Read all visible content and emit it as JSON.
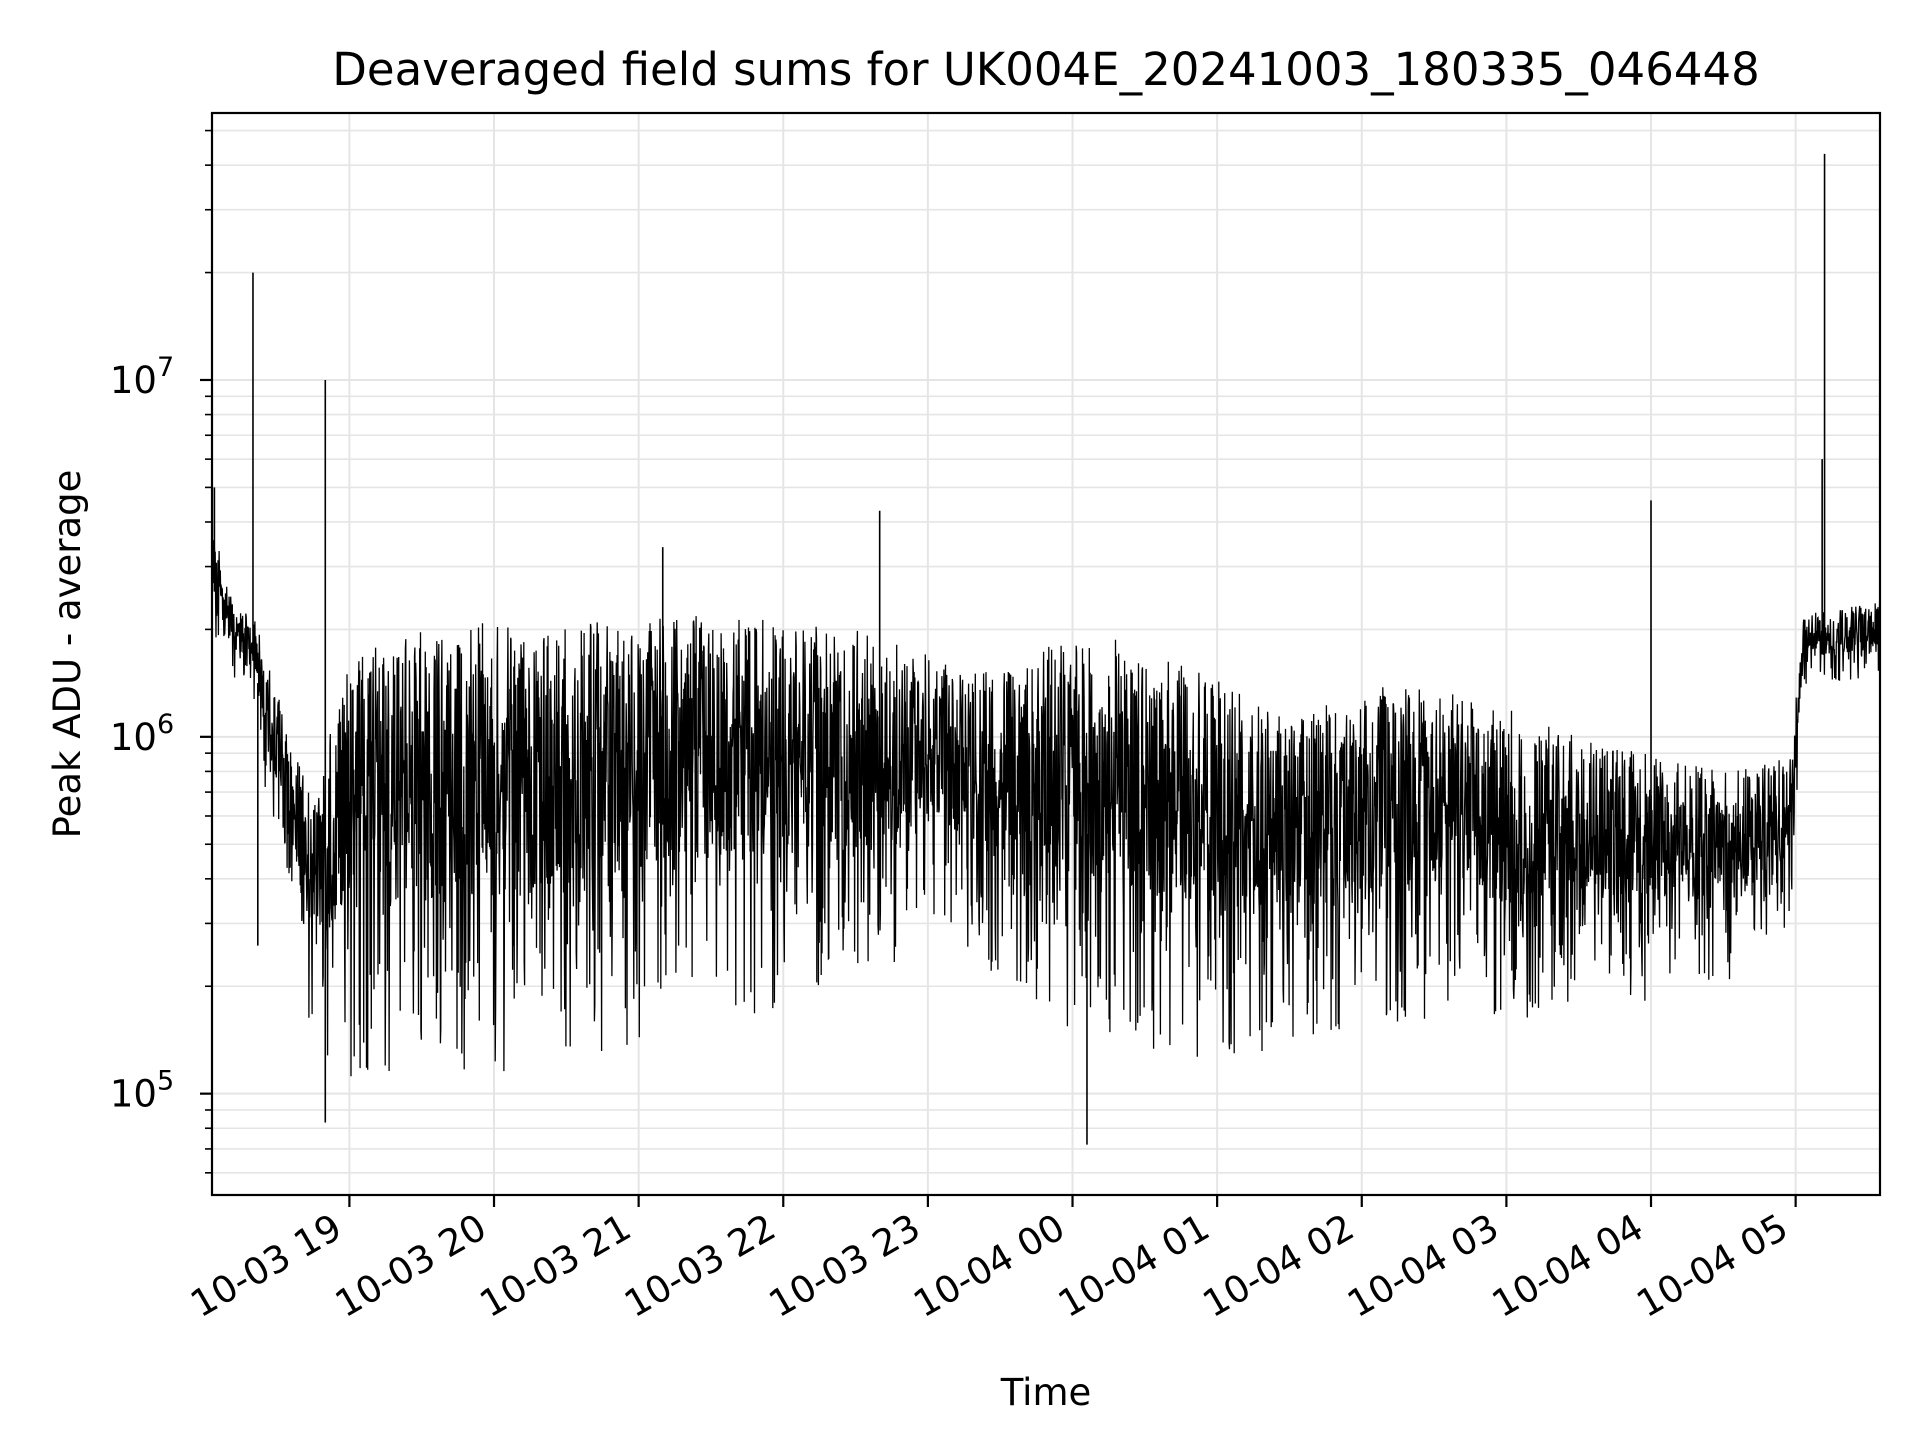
{
  "chart_data": {
    "type": "line",
    "title": "Deaveraged field sums for UK004E_20241003_180335_046448",
    "xlabel": "Time",
    "ylabel": "Peak ADU - average",
    "y_scale": "log",
    "ylim": [
      52000,
      56000000
    ],
    "xlim": [
      "2024-10-03 18:03",
      "2024-10-04 05:35"
    ],
    "grid": true,
    "line_color": "#000000",
    "grid_color": "#e5e5e5",
    "x_ticks": [
      {
        "t": "2024-10-03 19:00",
        "label": "10-03 19"
      },
      {
        "t": "2024-10-03 20:00",
        "label": "10-03 20"
      },
      {
        "t": "2024-10-03 21:00",
        "label": "10-03 21"
      },
      {
        "t": "2024-10-03 22:00",
        "label": "10-03 22"
      },
      {
        "t": "2024-10-03 23:00",
        "label": "10-03 23"
      },
      {
        "t": "2024-10-04 00:00",
        "label": "10-04 00"
      },
      {
        "t": "2024-10-04 01:00",
        "label": "10-04 01"
      },
      {
        "t": "2024-10-04 02:00",
        "label": "10-04 02"
      },
      {
        "t": "2024-10-04 03:00",
        "label": "10-04 03"
      },
      {
        "t": "2024-10-04 04:00",
        "label": "10-04 04"
      },
      {
        "t": "2024-10-04 05:00",
        "label": "10-04 05"
      }
    ],
    "y_ticks": [
      {
        "value": 100000,
        "base": "10",
        "exp": "5"
      },
      {
        "value": 1000000,
        "base": "10",
        "exp": "6"
      },
      {
        "value": 10000000,
        "base": "10",
        "exp": "7"
      }
    ],
    "series": [
      {
        "envelope": [
          {
            "t": "2024-10-03 18:03",
            "low": 1700000,
            "high": 4200000
          },
          {
            "t": "2024-10-03 18:10",
            "low": 1500000,
            "high": 2500000
          },
          {
            "t": "2024-10-03 18:20",
            "low": 1300000,
            "high": 2200000
          },
          {
            "t": "2024-10-03 18:25",
            "low": 650000,
            "high": 1800000
          },
          {
            "t": "2024-10-03 18:35",
            "low": 400000,
            "high": 1000000
          },
          {
            "t": "2024-10-03 18:45",
            "low": 130000,
            "high": 700000
          },
          {
            "t": "2024-10-03 19:00",
            "low": 110000,
            "high": 1800000
          },
          {
            "t": "2024-10-03 19:30",
            "low": 100000,
            "high": 2000000
          },
          {
            "t": "2024-10-03 20:00",
            "low": 110000,
            "high": 2100000
          },
          {
            "t": "2024-10-03 20:30",
            "low": 120000,
            "high": 2100000
          },
          {
            "t": "2024-10-03 21:00",
            "low": 140000,
            "high": 2200000
          },
          {
            "t": "2024-10-03 21:30",
            "low": 160000,
            "high": 2200000
          },
          {
            "t": "2024-10-03 22:00",
            "low": 160000,
            "high": 2100000
          },
          {
            "t": "2024-10-03 22:30",
            "low": 170000,
            "high": 2000000
          },
          {
            "t": "2024-10-03 23:00",
            "low": 300000,
            "high": 1700000
          },
          {
            "t": "2024-10-03 23:30",
            "low": 200000,
            "high": 1500000
          },
          {
            "t": "2024-10-04 00:00",
            "low": 150000,
            "high": 2000000
          },
          {
            "t": "2024-10-04 00:30",
            "low": 130000,
            "high": 1800000
          },
          {
            "t": "2024-10-04 01:00",
            "low": 110000,
            "high": 1500000
          },
          {
            "t": "2024-10-04 01:30",
            "low": 140000,
            "high": 1100000
          },
          {
            "t": "2024-10-04 02:00",
            "low": 150000,
            "high": 1400000
          },
          {
            "t": "2024-10-04 02:30",
            "low": 150000,
            "high": 1400000
          },
          {
            "t": "2024-10-04 03:00",
            "low": 150000,
            "high": 1200000
          },
          {
            "t": "2024-10-04 03:30",
            "low": 170000,
            "high": 1000000
          },
          {
            "t": "2024-10-04 04:00",
            "low": 180000,
            "high": 900000
          },
          {
            "t": "2024-10-04 04:30",
            "low": 200000,
            "high": 800000
          },
          {
            "t": "2024-10-04 04:58",
            "low": 300000,
            "high": 900000
          },
          {
            "t": "2024-10-04 05:03",
            "low": 1300000,
            "high": 2200000
          },
          {
            "t": "2024-10-04 05:35",
            "low": 1500000,
            "high": 2400000
          }
        ],
        "spikes": [
          {
            "t": "2024-10-03 18:04",
            "value": 5000000
          },
          {
            "t": "2024-10-03 18:20",
            "value": 20000000
          },
          {
            "t": "2024-10-03 18:22",
            "value": 260000
          },
          {
            "t": "2024-10-03 18:50",
            "value": 10000000
          },
          {
            "t": "2024-10-03 18:50",
            "value": 83000
          },
          {
            "t": "2024-10-03 21:10",
            "value": 3400000
          },
          {
            "t": "2024-10-03 22:40",
            "value": 4300000
          },
          {
            "t": "2024-10-04 00:06",
            "value": 72000
          },
          {
            "t": "2024-10-04 04:00",
            "value": 4600000
          },
          {
            "t": "2024-10-04 05:11",
            "value": 6000000
          },
          {
            "t": "2024-10-04 05:12",
            "value": 43000000
          }
        ]
      }
    ]
  }
}
